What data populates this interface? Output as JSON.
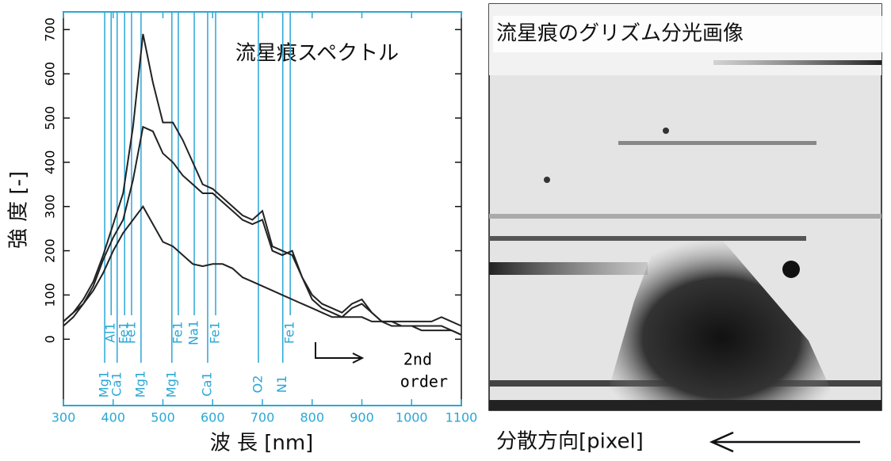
{
  "chart_data": {
    "type": "line",
    "title": "流星痕スペクトル",
    "xlabel": "波 長 [nm]",
    "ylabel": "強 度 [-]",
    "annotation_lines": [
      "2nd",
      "order"
    ],
    "xlim": [
      300,
      1100
    ],
    "ylim": [
      -150,
      740
    ],
    "xticks": [
      300,
      400,
      500,
      600,
      700,
      800,
      900,
      1000,
      1100
    ],
    "yticks": [
      0,
      100,
      200,
      300,
      400,
      500,
      600,
      700
    ],
    "x": [
      300,
      320,
      340,
      360,
      380,
      400,
      420,
      440,
      460,
      480,
      500,
      520,
      540,
      560,
      580,
      600,
      620,
      640,
      660,
      680,
      700,
      720,
      740,
      760,
      780,
      800,
      820,
      840,
      860,
      880,
      900,
      920,
      940,
      960,
      980,
      1000,
      1020,
      1040,
      1060,
      1080,
      1100
    ],
    "series": [
      {
        "color": "#222222",
        "values": [
          40,
          60,
          90,
          130,
          190,
          260,
          330,
          480,
          690,
          580,
          490,
          490,
          450,
          400,
          350,
          340,
          320,
          300,
          280,
          270,
          290,
          210,
          200,
          190,
          140,
          100,
          80,
          70,
          60,
          80,
          90,
          60,
          40,
          40,
          40,
          40,
          40,
          40,
          50,
          40,
          30
        ]
      },
      {
        "color": "#222222",
        "values": [
          40,
          60,
          80,
          120,
          180,
          230,
          270,
          360,
          480,
          470,
          420,
          400,
          370,
          350,
          330,
          330,
          310,
          290,
          270,
          260,
          270,
          200,
          190,
          200,
          140,
          90,
          70,
          60,
          50,
          70,
          80,
          60,
          40,
          40,
          30,
          30,
          20,
          20,
          20,
          20,
          10
        ]
      },
      {
        "color": "#222222",
        "values": [
          30,
          50,
          80,
          110,
          150,
          200,
          240,
          270,
          300,
          260,
          220,
          210,
          190,
          170,
          165,
          170,
          170,
          160,
          140,
          130,
          120,
          110,
          100,
          90,
          80,
          70,
          60,
          50,
          50,
          50,
          50,
          40,
          40,
          30,
          30,
          30,
          30,
          30,
          30,
          20,
          10
        ]
      }
    ],
    "emission_lines": [
      {
        "x": 383,
        "label": "Mg1"
      },
      {
        "x": 396,
        "label": "Al1"
      },
      {
        "x": 408,
        "label": "Ca1"
      },
      {
        "x": 423,
        "label": "Fe1"
      },
      {
        "x": 437,
        "label": "Fe1"
      },
      {
        "x": 456,
        "label": "Mg1"
      },
      {
        "x": 518,
        "label": "Mg1"
      },
      {
        "x": 531,
        "label": "Fe1"
      },
      {
        "x": 563,
        "label": "Na1"
      },
      {
        "x": 590,
        "label": "Ca1"
      },
      {
        "x": 606,
        "label": "Fe1"
      },
      {
        "x": 692,
        "label": "O2"
      },
      {
        "x": 741,
        "label": "N1"
      },
      {
        "x": 756,
        "label": "Fe1"
      }
    ],
    "line_color": "#2aa7d6"
  },
  "image_panel": {
    "title": "流星痕のグリズム分光画像",
    "axis_label": "分散方向[pixel]"
  }
}
